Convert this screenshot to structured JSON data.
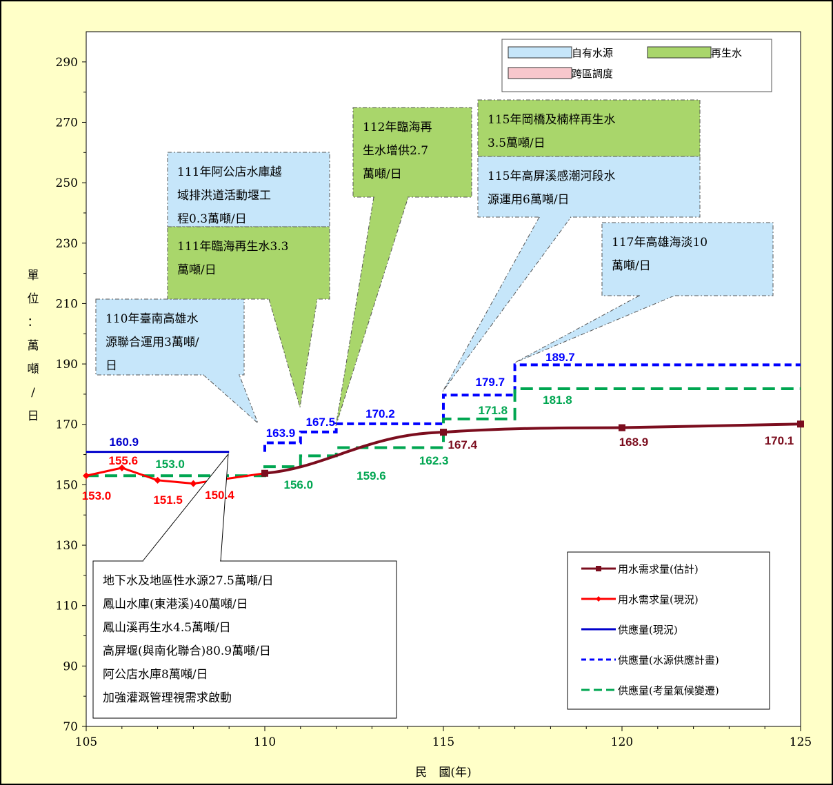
{
  "chart_data": {
    "type": "line",
    "xlabel": "民　國(年)",
    "ylabel": "單位：萬噸/日",
    "xlim": [
      105,
      125
    ],
    "ylim": [
      70,
      300
    ],
    "x_ticks": [
      "105",
      "110",
      "115",
      "120",
      "125"
    ],
    "y_ticks": [
      "70",
      "90",
      "110",
      "130",
      "150",
      "170",
      "190",
      "210",
      "230",
      "250",
      "270",
      "290"
    ],
    "grid": false,
    "series": [
      {
        "name": "用水需求量(估計)",
        "color": "#7b0d1e",
        "style": "solid-square",
        "x": [
          110,
          115,
          120,
          125
        ],
        "values": [
          153.8,
          167.4,
          168.9,
          170.1
        ]
      },
      {
        "name": "用水需求量(現況)",
        "color": "#ff0000",
        "style": "solid-diamond",
        "x": [
          105,
          106,
          107,
          108
        ],
        "values": [
          153.0,
          155.6,
          151.5,
          150.4
        ]
      },
      {
        "name": "供應量(現況)",
        "color": "#0000cc",
        "style": "solid",
        "x": [
          105,
          109
        ],
        "values": [
          160.9,
          160.9
        ]
      },
      {
        "name": "供應量(水源供應計畫)",
        "color": "#0000ff",
        "style": "dash-step",
        "x": [
          110,
          111,
          112,
          115,
          117,
          125
        ],
        "values": [
          163.9,
          167.5,
          170.2,
          179.7,
          189.7,
          189.7
        ]
      },
      {
        "name": "供應量(考量氣候變遷)",
        "color": "#00a651",
        "style": "dash-step",
        "x": [
          105,
          110,
          111,
          112,
          115,
          117,
          125
        ],
        "values": [
          153.0,
          156.0,
          159.6,
          162.3,
          171.8,
          181.8,
          181.8
        ]
      }
    ],
    "data_labels": [
      {
        "text": "153.0",
        "color": "#ff0000"
      },
      {
        "text": "155.6",
        "color": "#ff0000"
      },
      {
        "text": "151.5",
        "color": "#ff0000"
      },
      {
        "text": "150.4",
        "color": "#ff0000"
      },
      {
        "text": "160.9",
        "color": "#0000cc"
      },
      {
        "text": "153.0",
        "color": "#00a651"
      },
      {
        "text": "163.9",
        "color": "#0000ff"
      },
      {
        "text": "167.5",
        "color": "#0000ff"
      },
      {
        "text": "170.2",
        "color": "#0000ff"
      },
      {
        "text": "179.7",
        "color": "#0000ff"
      },
      {
        "text": "189.7",
        "color": "#0000ff"
      },
      {
        "text": "156.0",
        "color": "#00a651"
      },
      {
        "text": "159.6",
        "color": "#00a651"
      },
      {
        "text": "162.3",
        "color": "#00a651"
      },
      {
        "text": "171.8",
        "color": "#00a651"
      },
      {
        "text": "181.8",
        "color": "#00a651"
      },
      {
        "text": "167.4",
        "color": "#7b0d1e"
      },
      {
        "text": "168.9",
        "color": "#7b0d1e"
      },
      {
        "text": "170.1",
        "color": "#7b0d1e"
      }
    ],
    "source_legend": [
      {
        "name": "自有水源",
        "color": "#c6e6fa"
      },
      {
        "name": "再生水",
        "color": "#a9d66b"
      },
      {
        "name": "跨區調度",
        "color": "#f8c7cc"
      }
    ],
    "annotations": [
      {
        "kind": "blue",
        "lines": [
          "110年臺南高雄水",
          "源聯合運用3萬噸/",
          "日"
        ]
      },
      {
        "kind": "blue",
        "lines": [
          "111年阿公店水庫越",
          "域排洪道活動堰工",
          "程0.3萬噸/日"
        ]
      },
      {
        "kind": "green",
        "lines": [
          "111年臨海再生水3.3",
          "萬噸/日"
        ]
      },
      {
        "kind": "green",
        "lines": [
          "112年臨海再",
          "生水增供2.7",
          "萬噸/日"
        ]
      },
      {
        "kind": "green",
        "lines": [
          "115年岡橋及楠梓再生水",
          "3.5萬噸/日"
        ]
      },
      {
        "kind": "blue",
        "lines": [
          "115年高屏溪感潮河段水",
          "源運用6萬噸/日"
        ]
      },
      {
        "kind": "blue",
        "lines": [
          "117年高雄海淡10",
          "萬噸/日"
        ]
      },
      {
        "kind": "white",
        "lines": [
          "地下水及地區性水源27.5萬噸/日",
          "鳳山水庫(東港溪)40萬噸/日",
          "鳳山溪再生水4.5萬噸/日",
          "高屏堰(與南化聯合)80.9萬噸/日",
          "阿公店水庫8萬噸/日",
          "加強灌溉管理視需求啟動"
        ]
      }
    ]
  }
}
